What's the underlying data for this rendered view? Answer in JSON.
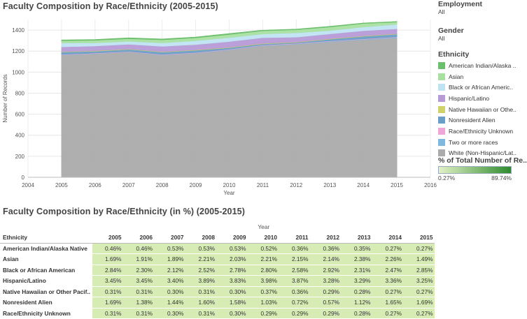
{
  "titles": {
    "top": "Faculty Composition by Race/Ethnicity (2005-2015)",
    "bottom": "Faculty Composition by Race/Ethnicity (in %) (2005-2015)"
  },
  "filters": {
    "employment": {
      "label": "Employment",
      "value": "All"
    },
    "gender": {
      "label": "Gender",
      "value": "All"
    }
  },
  "legend": {
    "title": "Ethnicity",
    "items": [
      {
        "label": "American Indian/Alaska ..",
        "color": "#6cbf6c"
      },
      {
        "label": "Asian",
        "color": "#a9e0a2"
      },
      {
        "label": "Black or African Americ..",
        "color": "#bfe3f2"
      },
      {
        "label": "Hispanic/Latino",
        "color": "#b79ad6"
      },
      {
        "label": "Native Hawaiian or Othe..",
        "color": "#cfd36a"
      },
      {
        "label": "Nonresident Alien",
        "color": "#6a9fc7"
      },
      {
        "label": "Race/Ethnicity Unknown",
        "color": "#f0a6d6"
      },
      {
        "label": "Two or more races",
        "color": "#7fb8de"
      },
      {
        "label": "White (Non-Hispanic/Lat..",
        "color": "#ababab"
      }
    ]
  },
  "color_scale": {
    "title": "% of Total Number of Re..",
    "min_label": "0.27%",
    "max_label": "89.74%",
    "colors": [
      "#e2f2c6",
      "#2e8b2e"
    ]
  },
  "chart_data": {
    "type": "area",
    "title": "Faculty Composition by Race/Ethnicity (2005-2015)",
    "xlabel": "Year",
    "ylabel": "Number of Records",
    "x_ticks": [
      2004,
      2005,
      2006,
      2007,
      2008,
      2009,
      2010,
      2011,
      2012,
      2013,
      2014,
      2015,
      2016
    ],
    "y_ticks": [
      0,
      200,
      400,
      600,
      800,
      1000,
      1200,
      1400
    ],
    "xlim": [
      2004,
      2016
    ],
    "ylim": [
      0,
      1500
    ],
    "x": [
      2005,
      2006,
      2007,
      2008,
      2009,
      2010,
      2011,
      2012,
      2013,
      2014,
      2015
    ],
    "series": [
      {
        "name": "White (Non-Hispanic/Lat..",
        "values": [
          1163,
          1175,
          1191,
          1163,
          1180,
          1210,
          1250,
          1266,
          1288,
          1307,
          1325
        ]
      },
      {
        "name": "Two or more races",
        "values": [
          2,
          2,
          2,
          2,
          2,
          3,
          4,
          4,
          5,
          5,
          6
        ]
      },
      {
        "name": "Race/Ethnicity Unknown",
        "values": [
          4,
          4,
          4,
          4,
          4,
          4,
          4,
          4,
          4,
          4,
          4
        ]
      },
      {
        "name": "Nonresident Alien",
        "values": [
          22,
          18,
          19,
          21,
          21,
          14,
          10,
          8,
          16,
          24,
          25
        ]
      },
      {
        "name": "Native Hawaiian or Othe..",
        "values": [
          4,
          4,
          4,
          4,
          4,
          5,
          5,
          4,
          4,
          4,
          4
        ]
      },
      {
        "name": "Hispanic/Latino",
        "values": [
          45,
          45,
          45,
          51,
          51,
          54,
          54,
          46,
          46,
          49,
          48
        ]
      },
      {
        "name": "Black or African Americ..",
        "values": [
          37,
          30,
          28,
          33,
          37,
          38,
          36,
          41,
          33,
          36,
          42
        ]
      },
      {
        "name": "Asian",
        "values": [
          22,
          25,
          25,
          29,
          27,
          30,
          30,
          30,
          33,
          33,
          22
        ]
      },
      {
        "name": "American Indian/Alaska ..",
        "values": [
          6,
          6,
          7,
          7,
          7,
          7,
          5,
          5,
          5,
          4,
          4
        ]
      }
    ]
  },
  "table": {
    "year_label": "Year",
    "ethnicity_header": "Ethnicity",
    "years": [
      "2005",
      "2006",
      "2007",
      "2008",
      "2009",
      "2010",
      "2011",
      "2012",
      "2013",
      "2014",
      "2015"
    ],
    "rows": [
      {
        "ethnicity": "American Indian/Alaska Native",
        "values": [
          "0.46%",
          "0.46%",
          "0.53%",
          "0.53%",
          "0.53%",
          "0.52%",
          "0.36%",
          "0.36%",
          "0.35%",
          "0.27%",
          "0.27%"
        ]
      },
      {
        "ethnicity": "Asian",
        "values": [
          "1.69%",
          "1.91%",
          "1.89%",
          "2.21%",
          "2.03%",
          "2.21%",
          "2.15%",
          "2.14%",
          "2.38%",
          "2.26%",
          "1.49%"
        ]
      },
      {
        "ethnicity": "Black or African American",
        "values": [
          "2.84%",
          "2.30%",
          "2.12%",
          "2.52%",
          "2.78%",
          "2.80%",
          "2.58%",
          "2.92%",
          "2.31%",
          "2.47%",
          "2.85%"
        ]
      },
      {
        "ethnicity": "Hispanic/Latino",
        "values": [
          "3.45%",
          "3.45%",
          "3.40%",
          "3.89%",
          "3.83%",
          "3.98%",
          "3.87%",
          "3.28%",
          "3.29%",
          "3.36%",
          "3.25%"
        ]
      },
      {
        "ethnicity": "Native Hawaiian or Other Pacif..",
        "values": [
          "0.31%",
          "0.31%",
          "0.30%",
          "0.31%",
          "0.30%",
          "0.37%",
          "0.36%",
          "0.29%",
          "0.28%",
          "0.27%",
          "0.27%"
        ]
      },
      {
        "ethnicity": "Nonresident Alien",
        "values": [
          "1.69%",
          "1.38%",
          "1.44%",
          "1.60%",
          "1.58%",
          "1.03%",
          "0.72%",
          "0.57%",
          "1.12%",
          "1.65%",
          "1.69%"
        ]
      },
      {
        "ethnicity": "Race/Ethnicity Unknown",
        "values": [
          "0.31%",
          "0.31%",
          "0.30%",
          "0.31%",
          "0.30%",
          "0.29%",
          "0.29%",
          "0.29%",
          "0.28%",
          "0.27%",
          "0.27%"
        ]
      }
    ]
  }
}
